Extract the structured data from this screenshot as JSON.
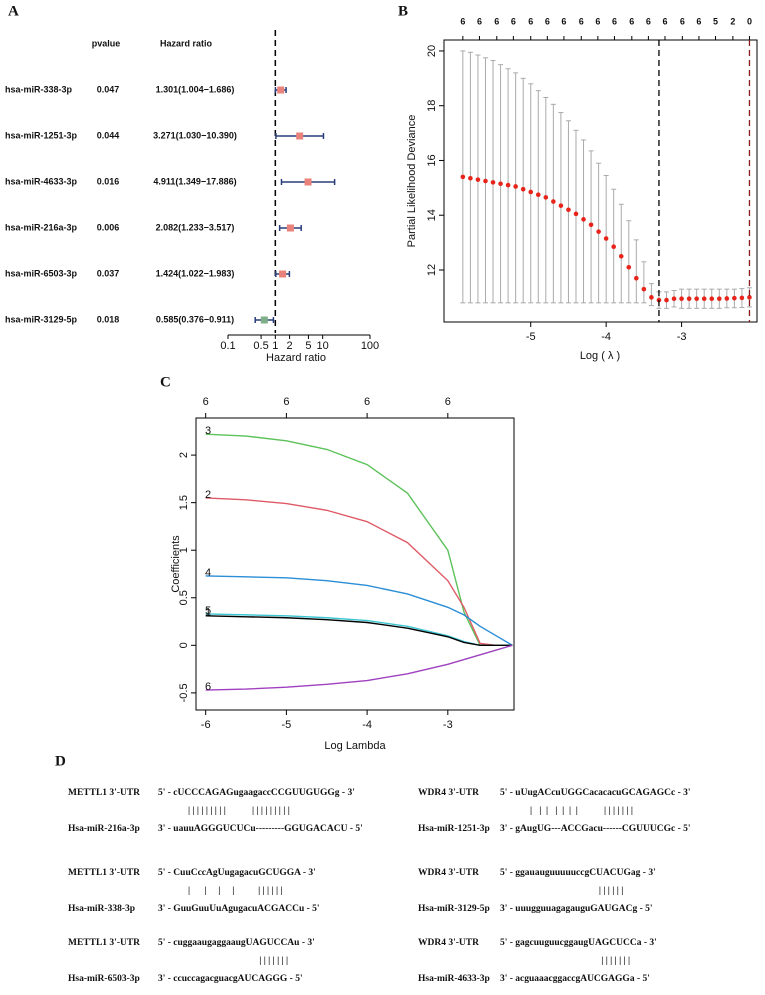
{
  "panel_labels": [
    "A",
    "B",
    "C",
    "D"
  ],
  "chart_data": [
    {
      "type": "forest",
      "columns": [
        "pvalue",
        "Hazard ratio"
      ],
      "categories": [
        "hsa-miR-338-3p",
        "hsa-miR-1251-3p",
        "hsa-miR-4633-3p",
        "hsa-miR-216a-3p",
        "hsa-miR-6503-3p",
        "hsa-miR-3129-5p"
      ],
      "pvalues": [
        0.047,
        0.044,
        0.016,
        0.006,
        0.037,
        0.018
      ],
      "hr_labels": [
        "1.301(1.004−1.686)",
        "3.271(1.030−10.390)",
        "4.911(1.349−17.886)",
        "2.082(1.233−3.517)",
        "1.424(1.022−1.983)",
        "0.585(0.376−0.911)"
      ],
      "values": [
        1.301,
        3.271,
        4.911,
        2.082,
        1.424,
        0.585
      ],
      "lower": [
        1.004,
        1.03,
        1.349,
        1.233,
        1.022,
        0.376
      ],
      "upper": [
        1.686,
        10.39,
        17.886,
        3.517,
        1.983,
        0.911
      ],
      "colors": [
        "#e8827a",
        "#e8827a",
        "#e8827a",
        "#e8827a",
        "#e8827a",
        "#7fae8a"
      ],
      "ci_color": "#2a3d7a",
      "log": true,
      "refline": 1,
      "xlim": [
        0.1,
        100
      ],
      "xticks": [
        0.1,
        0.5,
        1,
        2,
        5,
        10,
        100
      ],
      "xlabel": "Hazard ratio"
    },
    {
      "type": "cv",
      "xlabel": "Log ( λ )",
      "ylabel": "Partial Likelihood Deviance",
      "color": "#e8231a",
      "err_color": "#aaaaaa",
      "x": [
        -5.9,
        -5.8,
        -5.7,
        -5.6,
        -5.5,
        -5.4,
        -5.3,
        -5.2,
        -5.1,
        -5.0,
        -4.9,
        -4.8,
        -4.7,
        -4.6,
        -4.5,
        -4.4,
        -4.3,
        -4.2,
        -4.1,
        -4.0,
        -3.9,
        -3.8,
        -3.7,
        -3.6,
        -3.5,
        -3.4,
        -3.3,
        -3.2,
        -3.1,
        -3.0,
        -2.9,
        -2.8,
        -2.7,
        -2.6,
        -2.5,
        -2.4,
        -2.3,
        -2.2,
        -2.1
      ],
      "values": [
        15.4,
        15.35,
        15.3,
        15.25,
        15.2,
        15.15,
        15.1,
        15.05,
        14.95,
        14.85,
        14.75,
        14.65,
        14.5,
        14.35,
        14.2,
        14.05,
        13.85,
        13.65,
        13.4,
        13.15,
        12.85,
        12.5,
        12.1,
        11.7,
        11.3,
        11.0,
        10.9,
        10.9,
        10.95,
        10.95,
        10.95,
        10.95,
        10.95,
        10.95,
        10.95,
        10.96,
        10.97,
        10.98,
        11.0
      ],
      "upper": [
        20.0,
        19.95,
        19.85,
        19.75,
        19.65,
        19.5,
        19.35,
        19.2,
        19.0,
        18.8,
        18.55,
        18.3,
        18.05,
        17.75,
        17.45,
        17.1,
        16.75,
        16.35,
        15.9,
        15.45,
        14.95,
        14.4,
        13.8,
        13.1,
        12.3,
        11.5,
        11.2,
        11.2,
        11.25,
        11.3,
        11.3,
        11.3,
        11.3,
        11.3,
        11.3,
        11.3,
        11.3,
        11.32,
        11.35
      ],
      "lower": [
        10.8,
        10.8,
        10.8,
        10.8,
        10.8,
        10.8,
        10.8,
        10.8,
        10.8,
        10.8,
        10.8,
        10.8,
        10.8,
        10.8,
        10.8,
        10.8,
        10.8,
        10.8,
        10.8,
        10.8,
        10.8,
        10.8,
        10.8,
        10.8,
        10.8,
        10.7,
        10.6,
        10.6,
        10.65,
        10.6,
        10.6,
        10.6,
        10.6,
        10.6,
        10.6,
        10.62,
        10.62,
        10.63,
        10.65
      ],
      "vlines": [
        -3.3,
        -2.1
      ],
      "vline_colors": [
        "#000000",
        "#8b1a1a"
      ],
      "top_x": [
        -5.9,
        -5.68,
        -5.45,
        -5.23,
        -5.0,
        -4.78,
        -4.56,
        -4.33,
        -4.11,
        -3.89,
        -3.66,
        -3.44,
        -3.22,
        -2.99,
        -2.77,
        -2.55,
        -2.32,
        -2.1
      ],
      "top_labels": [
        6,
        6,
        6,
        6,
        6,
        6,
        6,
        6,
        6,
        6,
        6,
        6,
        6,
        6,
        6,
        5,
        2,
        0
      ],
      "xlim": [
        -6.15,
        -2.0
      ],
      "xticks": [
        -5,
        -4,
        -3
      ],
      "ylim": [
        10.1,
        20.4
      ],
      "yticks": [
        12,
        14,
        16,
        18,
        20
      ]
    },
    {
      "type": "line",
      "xlabel": "Log Lambda",
      "ylabel": "Coefficients",
      "x": [
        -6,
        -5.5,
        -5,
        -4.5,
        -4,
        -3.5,
        -3,
        -2.8,
        -2.6,
        -2.4,
        -2.2
      ],
      "series": [
        {
          "name": "3",
          "color": "#5cc25a",
          "values": [
            2.22,
            2.2,
            2.15,
            2.06,
            1.9,
            1.6,
            1.0,
            0.35,
            0,
            0,
            0
          ]
        },
        {
          "name": "2",
          "color": "#df5a66",
          "values": [
            1.55,
            1.53,
            1.49,
            1.42,
            1.3,
            1.08,
            0.68,
            0.4,
            0.02,
            0,
            0
          ]
        },
        {
          "name": "4",
          "color": "#2b8ed6",
          "values": [
            0.73,
            0.72,
            0.71,
            0.68,
            0.63,
            0.54,
            0.4,
            0.32,
            0.2,
            0.1,
            0
          ]
        },
        {
          "name": "5",
          "color": "#3cc6d2",
          "values": [
            0.33,
            0.32,
            0.31,
            0.29,
            0.26,
            0.2,
            0.1,
            0.04,
            0,
            0,
            0
          ]
        },
        {
          "name": "1",
          "color": "#000000",
          "values": [
            0.31,
            0.3,
            0.29,
            0.27,
            0.24,
            0.18,
            0.09,
            0.03,
            0,
            0,
            0
          ]
        },
        {
          "name": "6",
          "color": "#a040c0",
          "values": [
            -0.47,
            -0.46,
            -0.44,
            -0.41,
            -0.37,
            -0.3,
            -0.2,
            -0.15,
            -0.1,
            -0.05,
            0
          ]
        }
      ],
      "top_x": [
        -6,
        -5,
        -4,
        -3
      ],
      "top_labels": [
        6,
        6,
        6,
        6
      ],
      "xlim": [
        -6.12,
        -2.18
      ],
      "xticks": [
        -6,
        -5,
        -4,
        -3
      ],
      "ylim": [
        -0.68,
        2.39
      ],
      "yticks": [
        -0.5,
        0.0,
        0.5,
        1.0,
        1.5,
        2.0
      ]
    }
  ],
  "alignments": [
    {
      "gene": "METTL1 3'-UTR",
      "utr_seq": "5' - cUCCCAGAGugaagaccCCGUUGUGGg - 3'",
      "pairs": "| | | | | | | | |           | | | | | | | | |",
      "mirna": "Hsa-miR-216a-3p",
      "mirna_seq": "3' - uauuAGGGUCUCu---------GGUGACACU - 5'"
    },
    {
      "gene": "WDR4 3'-UTR",
      "utr_seq": "5' - uUugACcuUGGCacacacuGCAGAGCc - 3'",
      "pairs": "|   |  |   |  |  |  |           | | | | | | |",
      "mirna": "Hsa-miR-1251-3p",
      "mirna_seq": "3' - gAugUG---ACCGacu------CGUUUCGc - 5'"
    },
    {
      "gene": "METTL1 3'-UTR",
      "utr_seq": "5' - CuuCccAgUugagacuGCUGGA - 3'",
      "pairs": "|      |     |     |          | | | | | |",
      "mirna": "Hsa-miR-338-3p",
      "mirna_seq": "3' - GuuGuuUuAgugacuACGACCu - 5'"
    },
    {
      "gene": "WDR4 3'-UTR",
      "utr_seq": "5' - ggauauguuuuuccgCUACUGag - 3'",
      "pairs": "                             | | | | | |",
      "mirna": "Hsa-miR-3129-5p",
      "mirna_seq": "3' - uuugguuagagauguGAUGACg - 5'"
    },
    {
      "gene": "METTL1 3'-UTR",
      "utr_seq": "5' - cuggaaugaggaaugUAGUCCAu - 3'",
      "pairs": "                              | | | | | | |",
      "mirna": "Hsa-miR-6503-3p",
      "mirna_seq": "3' - ccuccagacguacgAUCAGGG - 5'"
    },
    {
      "gene": "WDR4 3'-UTR",
      "utr_seq": "5' - gagcuuguucggaugUAGCUCCa - 3'",
      "pairs": "                              | | | | | | |",
      "mirna": "Hsa-miR-4633-3p",
      "mirna_seq": "3' - acguaaacggaccgAUCGAGGa - 5'"
    }
  ]
}
